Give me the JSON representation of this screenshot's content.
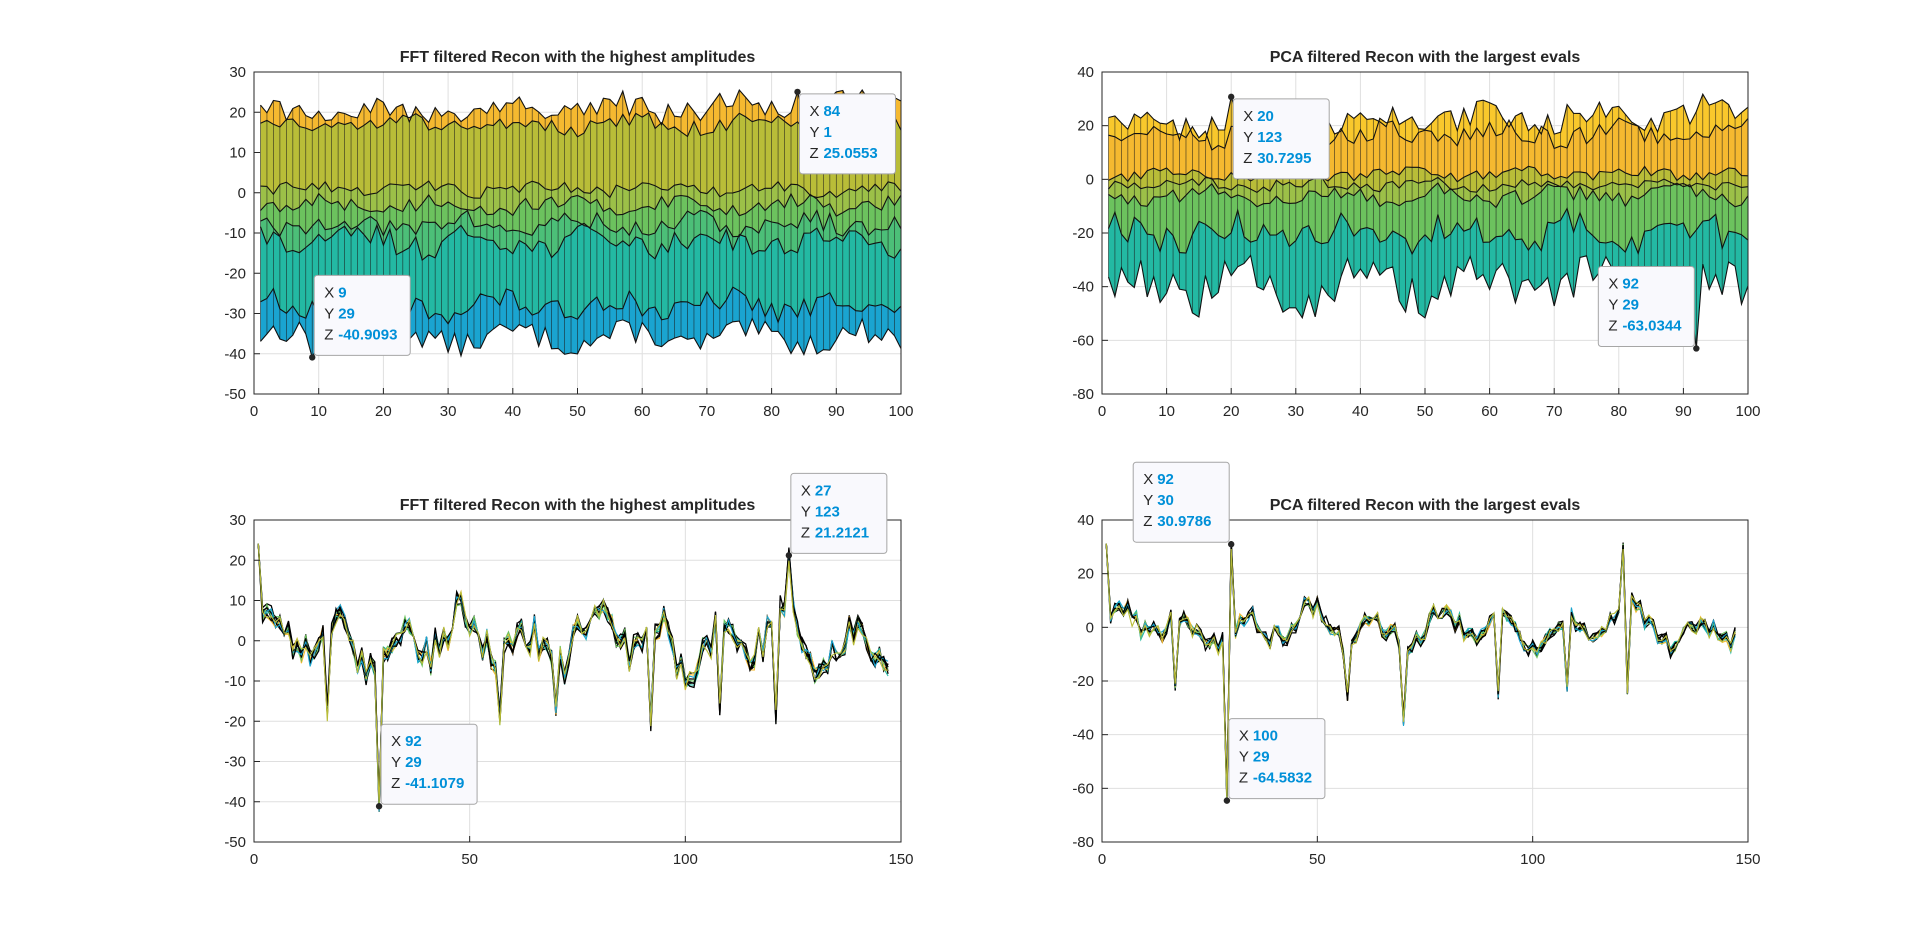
{
  "figure": {
    "background": "#ffffff"
  },
  "colors": {
    "surface_colormap": [
      "#3d26a8",
      "#2f6ff0",
      "#1aa4d0",
      "#23b9a3",
      "#6cc25e",
      "#b9bd38",
      "#f5b930",
      "#f9e82c"
    ],
    "datatip_value": "#0090d8",
    "line": "#000000"
  },
  "chart_data": [
    {
      "id": "fft-surface",
      "type": "area",
      "title": "FFT filtered Recon with the highest amplitudes",
      "xlabel": "",
      "ylabel": "",
      "xlim": [
        0,
        100
      ],
      "ylim": [
        -50,
        30
      ],
      "xticks": [
        0,
        10,
        20,
        30,
        40,
        50,
        60,
        70,
        80,
        90,
        100
      ],
      "yticks": [
        -50,
        -40,
        -30,
        -20,
        -10,
        0,
        10,
        20,
        30
      ],
      "grid": true,
      "series": [
        {
          "color": "#1aa4d0",
          "base": -36,
          "amp": 3,
          "max_y": -30
        },
        {
          "color": "#23b9a3",
          "base": -28,
          "amp": 3
        },
        {
          "color": "#4cbf78",
          "base": -12,
          "amp": 3
        },
        {
          "color": "#6cc25e",
          "base": -8,
          "amp": 2.5
        },
        {
          "color": "#9cc048",
          "base": -3,
          "amp": 2
        },
        {
          "color": "#b9bd38",
          "base": 1,
          "amp": 1.5
        },
        {
          "color": "#f5b930",
          "base": 17,
          "amp": 2
        },
        {
          "color": "#f9e82c",
          "base": 19,
          "amp": 3,
          "trend": 0.03
        }
      ],
      "datatips": [
        {
          "X": "9",
          "Y": "29",
          "Z": "-40.9093",
          "x": 9,
          "y": -40.9093
        },
        {
          "X": "84",
          "Y": "1",
          "Z": "25.0553",
          "x": 84,
          "y": 25.0553
        }
      ]
    },
    {
      "id": "pca-surface",
      "type": "area",
      "title": "PCA filtered Recon with the largest evals",
      "xlabel": "",
      "ylabel": "",
      "xlim": [
        0,
        100
      ],
      "ylim": [
        -80,
        40
      ],
      "xticks": [
        0,
        10,
        20,
        30,
        40,
        50,
        60,
        70,
        80,
        90,
        100
      ],
      "yticks": [
        -80,
        -60,
        -40,
        -20,
        0,
        20,
        40
      ],
      "grid": true,
      "series": [
        {
          "color": "#23b9a3",
          "base": -40,
          "amp": 8
        },
        {
          "color": "#6cc25e",
          "base": -20,
          "amp": 6
        },
        {
          "color": "#9cc048",
          "base": -6,
          "amp": 3
        },
        {
          "color": "#b9bd38",
          "base": -2,
          "amp": 2
        },
        {
          "color": "#f5b930",
          "base": 2,
          "amp": 2
        },
        {
          "color": "#f9c82c",
          "base": 17,
          "amp": 4
        },
        {
          "color": "#f9e82c",
          "base": 20,
          "amp": 5,
          "trend": 0.05
        }
      ],
      "datatips": [
        {
          "X": "20",
          "Y": "123",
          "Z": "30.7295",
          "x": 20,
          "y": 30.7295
        },
        {
          "X": "92",
          "Y": "29",
          "Z": "-63.0344",
          "x": 92,
          "y": -63.0344
        }
      ]
    },
    {
      "id": "fft-lines",
      "type": "line",
      "title": "FFT filtered Recon with the highest amplitudes",
      "xlabel": "",
      "ylabel": "",
      "xlim": [
        0,
        150
      ],
      "ylim": [
        -50,
        30
      ],
      "xticks": [
        0,
        50,
        100,
        150
      ],
      "yticks": [
        -50,
        -40,
        -30,
        -20,
        -10,
        0,
        10,
        20,
        30
      ],
      "grid": true,
      "n_points": 147,
      "peaks": [
        [
          1,
          25
        ],
        [
          17,
          -18
        ],
        [
          29,
          -41.1079
        ],
        [
          57,
          -19
        ],
        [
          70,
          -17
        ],
        [
          92,
          -21
        ],
        [
          108,
          -17
        ],
        [
          121,
          -19
        ],
        [
          124,
          21.2121
        ]
      ],
      "datatips": [
        {
          "X": "27",
          "Y": "123",
          "Z": "21.2121",
          "x": 124,
          "y": 21.2121
        },
        {
          "X": "92",
          "Y": "29",
          "Z": "-41.1079",
          "x": 29,
          "y": -41.1079
        }
      ]
    },
    {
      "id": "pca-lines",
      "type": "line",
      "title": "PCA filtered Recon with the largest evals",
      "xlabel": "",
      "ylabel": "",
      "xlim": [
        0,
        150
      ],
      "ylim": [
        -80,
        40
      ],
      "xticks": [
        0,
        50,
        100,
        150
      ],
      "yticks": [
        -80,
        -60,
        -40,
        -20,
        0,
        20,
        40
      ],
      "grid": true,
      "n_points": 147,
      "peaks": [
        [
          1,
          32
        ],
        [
          17,
          -22
        ],
        [
          29,
          -64.5832
        ],
        [
          30,
          30.9786
        ],
        [
          57,
          -26
        ],
        [
          70,
          -35
        ],
        [
          92,
          -25
        ],
        [
          108,
          -22
        ],
        [
          121,
          30
        ],
        [
          122,
          -23
        ]
      ],
      "datatips": [
        {
          "X": "92",
          "Y": "30",
          "Z": "30.9786",
          "x": 30,
          "y": 30.9786
        },
        {
          "X": "100",
          "Y": "29",
          "Z": "-64.5832",
          "x": 29,
          "y": -64.5832
        }
      ]
    }
  ]
}
